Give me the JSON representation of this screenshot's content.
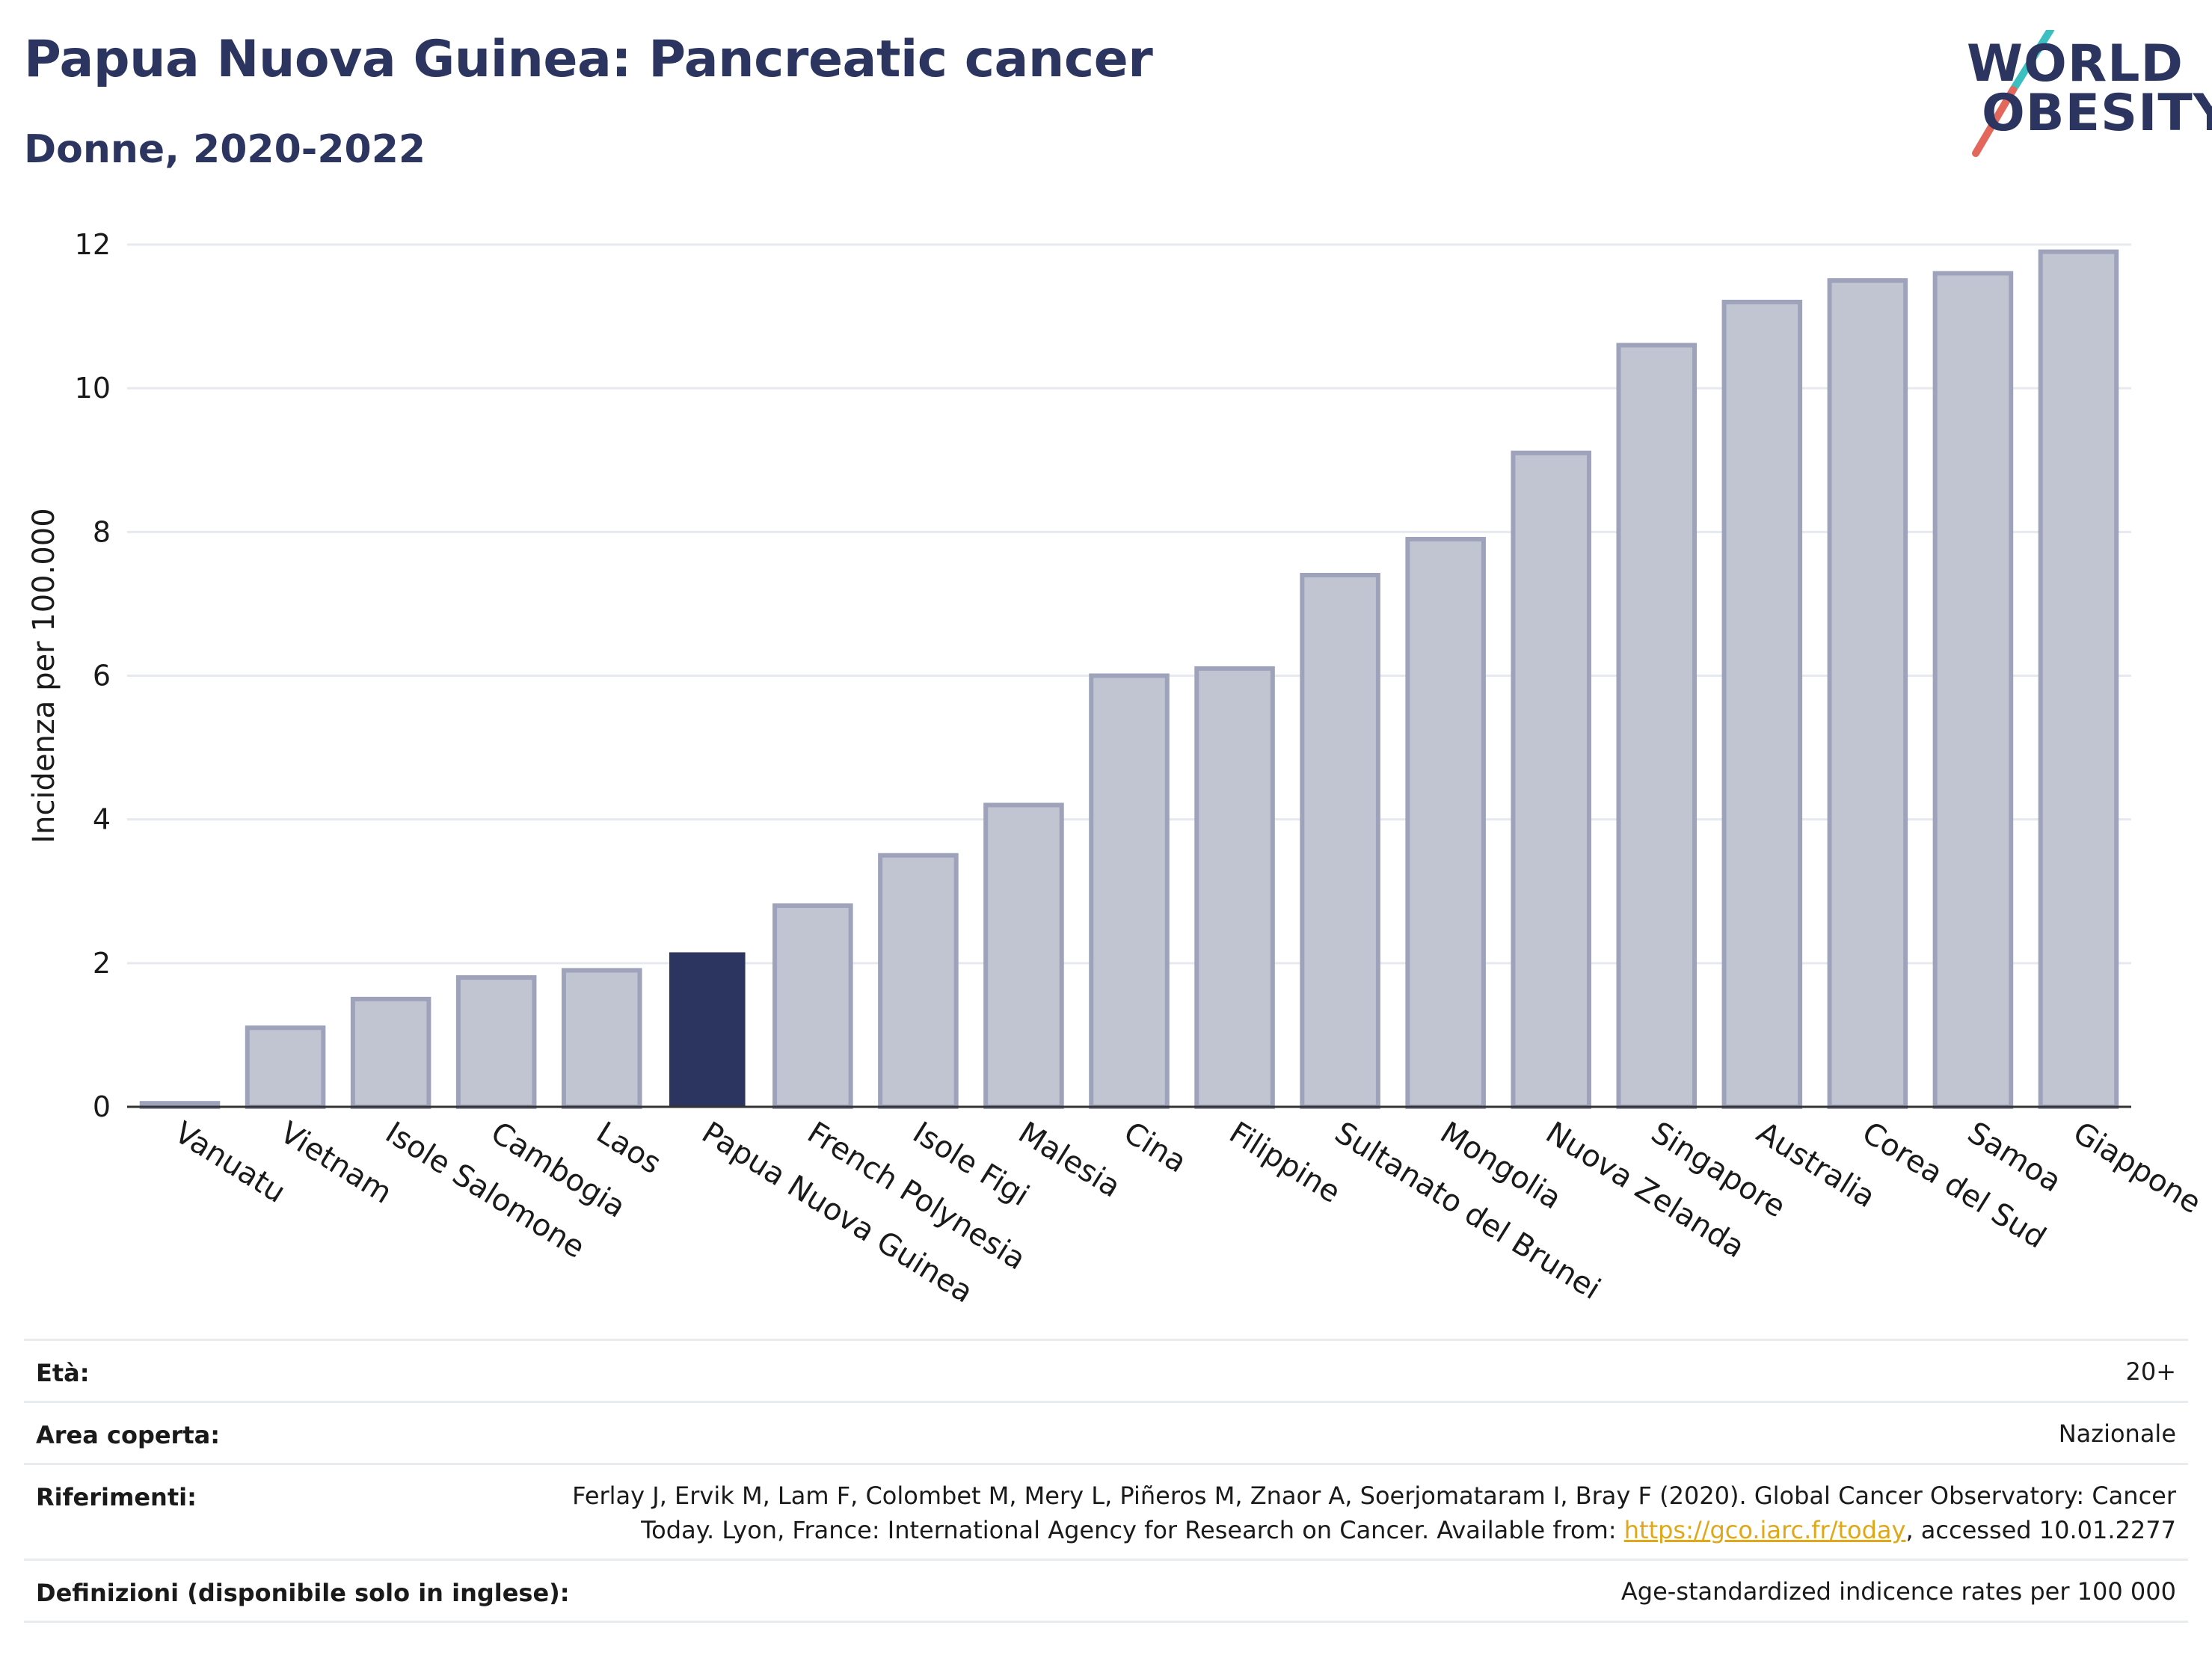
{
  "header": {
    "title": "Papua Nuova Guinea: Pancreatic cancer",
    "subtitle": "Donne, 2020-2022"
  },
  "logo": {
    "line1": "WORLD",
    "line2": "OBESITY",
    "slash_colors": [
      "#3bbfc1",
      "#e3675a"
    ]
  },
  "colors": {
    "highlight": "#2b3560",
    "bar": "#c1c4d1",
    "bar_border": "#9ea3bb",
    "grid": "#e6e9ee",
    "link": "#e0a818"
  },
  "chart_data": {
    "type": "bar",
    "ylabel": "Incidenza per 100.000",
    "xlabel": "",
    "ylim": [
      0,
      12
    ],
    "yticks": [
      0,
      2,
      4,
      6,
      8,
      10,
      12
    ],
    "grid": true,
    "highlight": "Papua Nuova Guinea",
    "categories": [
      "Vanuatu",
      "Vietnam",
      "Isole Salomone",
      "Cambogia",
      "Laos",
      "Papua Nuova Guinea",
      "French Polynesia",
      "Isole Figi",
      "Malesia",
      "Cina",
      "Filippine",
      "Sultanato del Brunei",
      "Mongolia",
      "Nuova Zelanda",
      "Singapore",
      "Australia",
      "Corea del Sud",
      "Samoa",
      "Giappone"
    ],
    "values": [
      0.05,
      1.1,
      1.5,
      1.8,
      1.9,
      2.15,
      2.8,
      3.5,
      4.2,
      6.0,
      6.1,
      7.4,
      7.9,
      9.1,
      10.6,
      11.2,
      11.5,
      11.6,
      11.9
    ]
  },
  "meta": {
    "age_label": "Età:",
    "age_value": "20+",
    "area_label": "Area coperta:",
    "area_value": "Nazionale",
    "ref_label": "Riferimenti:",
    "ref_line1": "Ferlay J, Ervik M, Lam F, Colombet M, Mery L, Piñeros M, Znaor A, Soerjomataram I, Bray F (2020). Global Cancer Observatory: Cancer",
    "ref_line2_pre": "Today. Lyon, France: International Agency for Research on Cancer. Available from: ",
    "ref_link": "https://gco.iarc.fr/today",
    "ref_line2_post": ", accessed 10.01.2277",
    "def_label": "Definizioni (disponibile solo in inglese):",
    "def_value": "Age-standardized indicence rates per 100 000"
  }
}
